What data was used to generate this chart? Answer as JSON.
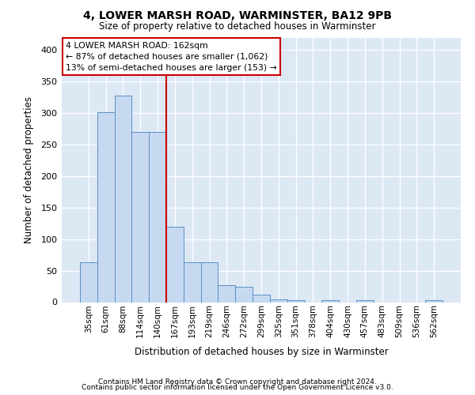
{
  "title1": "4, LOWER MARSH ROAD, WARMINSTER, BA12 9PB",
  "title2": "Size of property relative to detached houses in Warminster",
  "xlabel": "Distribution of detached houses by size in Warminster",
  "ylabel": "Number of detached properties",
  "categories": [
    "35sqm",
    "61sqm",
    "88sqm",
    "114sqm",
    "140sqm",
    "167sqm",
    "193sqm",
    "219sqm",
    "246sqm",
    "272sqm",
    "299sqm",
    "325sqm",
    "351sqm",
    "378sqm",
    "404sqm",
    "430sqm",
    "457sqm",
    "483sqm",
    "509sqm",
    "536sqm",
    "562sqm"
  ],
  "values": [
    63,
    302,
    328,
    270,
    270,
    120,
    63,
    63,
    27,
    25,
    12,
    5,
    3,
    0,
    3,
    0,
    3,
    0,
    0,
    0,
    3
  ],
  "bar_color": "#c6d9f1",
  "bar_edge_color": "#5a8fc3",
  "vline_x": 4.5,
  "vline_color": "#cc0000",
  "annotation_line1": "4 LOWER MARSH ROAD: 162sqm",
  "annotation_line2": "← 87% of detached houses are smaller (1,062)",
  "annotation_line3": "13% of semi-detached houses are larger (153) →",
  "annotation_box_facecolor": "#ffffff",
  "annotation_box_edgecolor": "#cc0000",
  "background_color": "#dde8f5",
  "grid_color": "#ffffff",
  "ylim": [
    0,
    420
  ],
  "yticks": [
    0,
    50,
    100,
    150,
    200,
    250,
    300,
    350,
    400
  ],
  "footer1": "Contains HM Land Registry data © Crown copyright and database right 2024.",
  "footer2": "Contains public sector information licensed under the Open Government Licence v3.0."
}
